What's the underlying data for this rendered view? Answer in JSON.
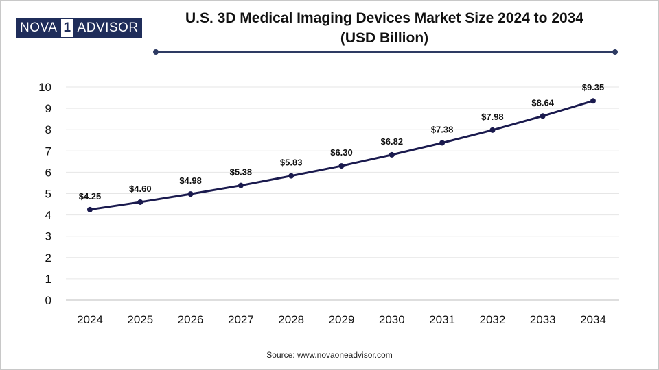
{
  "logo": {
    "part1": "NOVA",
    "part2": "1",
    "part3": "ADVISOR"
  },
  "title": {
    "line1": "U.S. 3D Medical Imaging Devices Market Size 2024 to 2034",
    "line2": "(USD Billion)"
  },
  "source": "Source: www.novaoneadvisor.com",
  "colors": {
    "line": "#1a1a4e",
    "grid": "#e6e6e6",
    "accent": "#2e3b63"
  },
  "chart_data": {
    "type": "line",
    "title": "U.S. 3D Medical Imaging Devices Market Size 2024 to 2034 (USD Billion)",
    "xlabel": "",
    "ylabel": "",
    "categories": [
      "2024",
      "2025",
      "2026",
      "2027",
      "2028",
      "2029",
      "2030",
      "2031",
      "2032",
      "2033",
      "2034"
    ],
    "values": [
      4.25,
      4.6,
      4.98,
      5.38,
      5.83,
      6.3,
      6.82,
      7.38,
      7.98,
      8.64,
      9.35
    ],
    "data_labels": [
      "$4.25",
      "$4.60",
      "$4.98",
      "$5.38",
      "$5.83",
      "$6.30",
      "$6.82",
      "$7.38",
      "$7.98",
      "$8.64",
      "$9.35"
    ],
    "yticks": [
      0,
      1,
      2,
      3,
      4,
      5,
      6,
      7,
      8,
      9,
      10
    ],
    "ylim": [
      0,
      10
    ],
    "grid": true,
    "legend": "none"
  }
}
